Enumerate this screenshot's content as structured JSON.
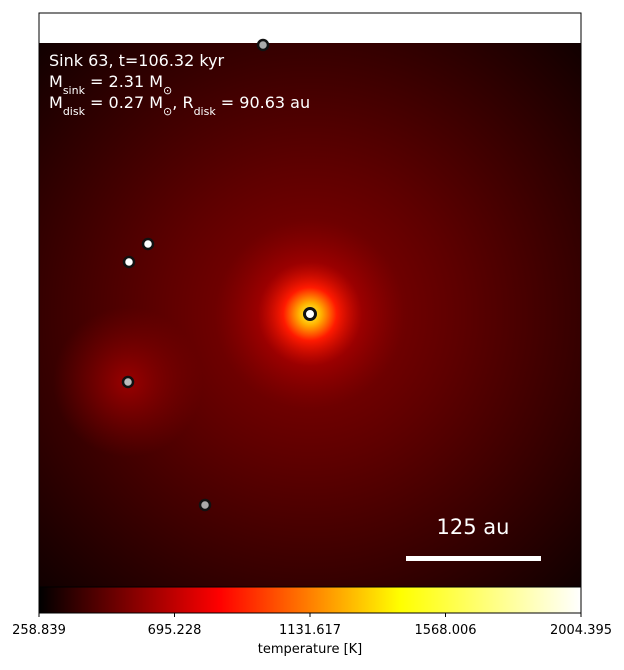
{
  "chart_data": {
    "type": "heatmap",
    "annotation_lines": [
      [
        {
          "text": "Sink 63, t=106.32 kyr"
        }
      ],
      [
        {
          "text": "M"
        },
        {
          "sub": "sink"
        },
        {
          "text": " = 2.31 M"
        },
        {
          "sub": "⊙"
        }
      ],
      [
        {
          "text": "M"
        },
        {
          "sub": "disk"
        },
        {
          "text": " = 0.27 M"
        },
        {
          "sub": "⊙"
        },
        {
          "text": ", R"
        },
        {
          "sub": "disk"
        },
        {
          "text": " = 90.63 au"
        }
      ]
    ],
    "scale_bar_label": "125 au",
    "colorbar": {
      "label": "temperature [K]",
      "lim": [
        258.839,
        2004.395
      ],
      "ticks": [
        258.839,
        695.228,
        1131.617,
        1568.006,
        2004.395
      ],
      "colormap": [
        "#000000",
        "#ff0000",
        "#ffff00",
        "#ffffff"
      ]
    }
  }
}
